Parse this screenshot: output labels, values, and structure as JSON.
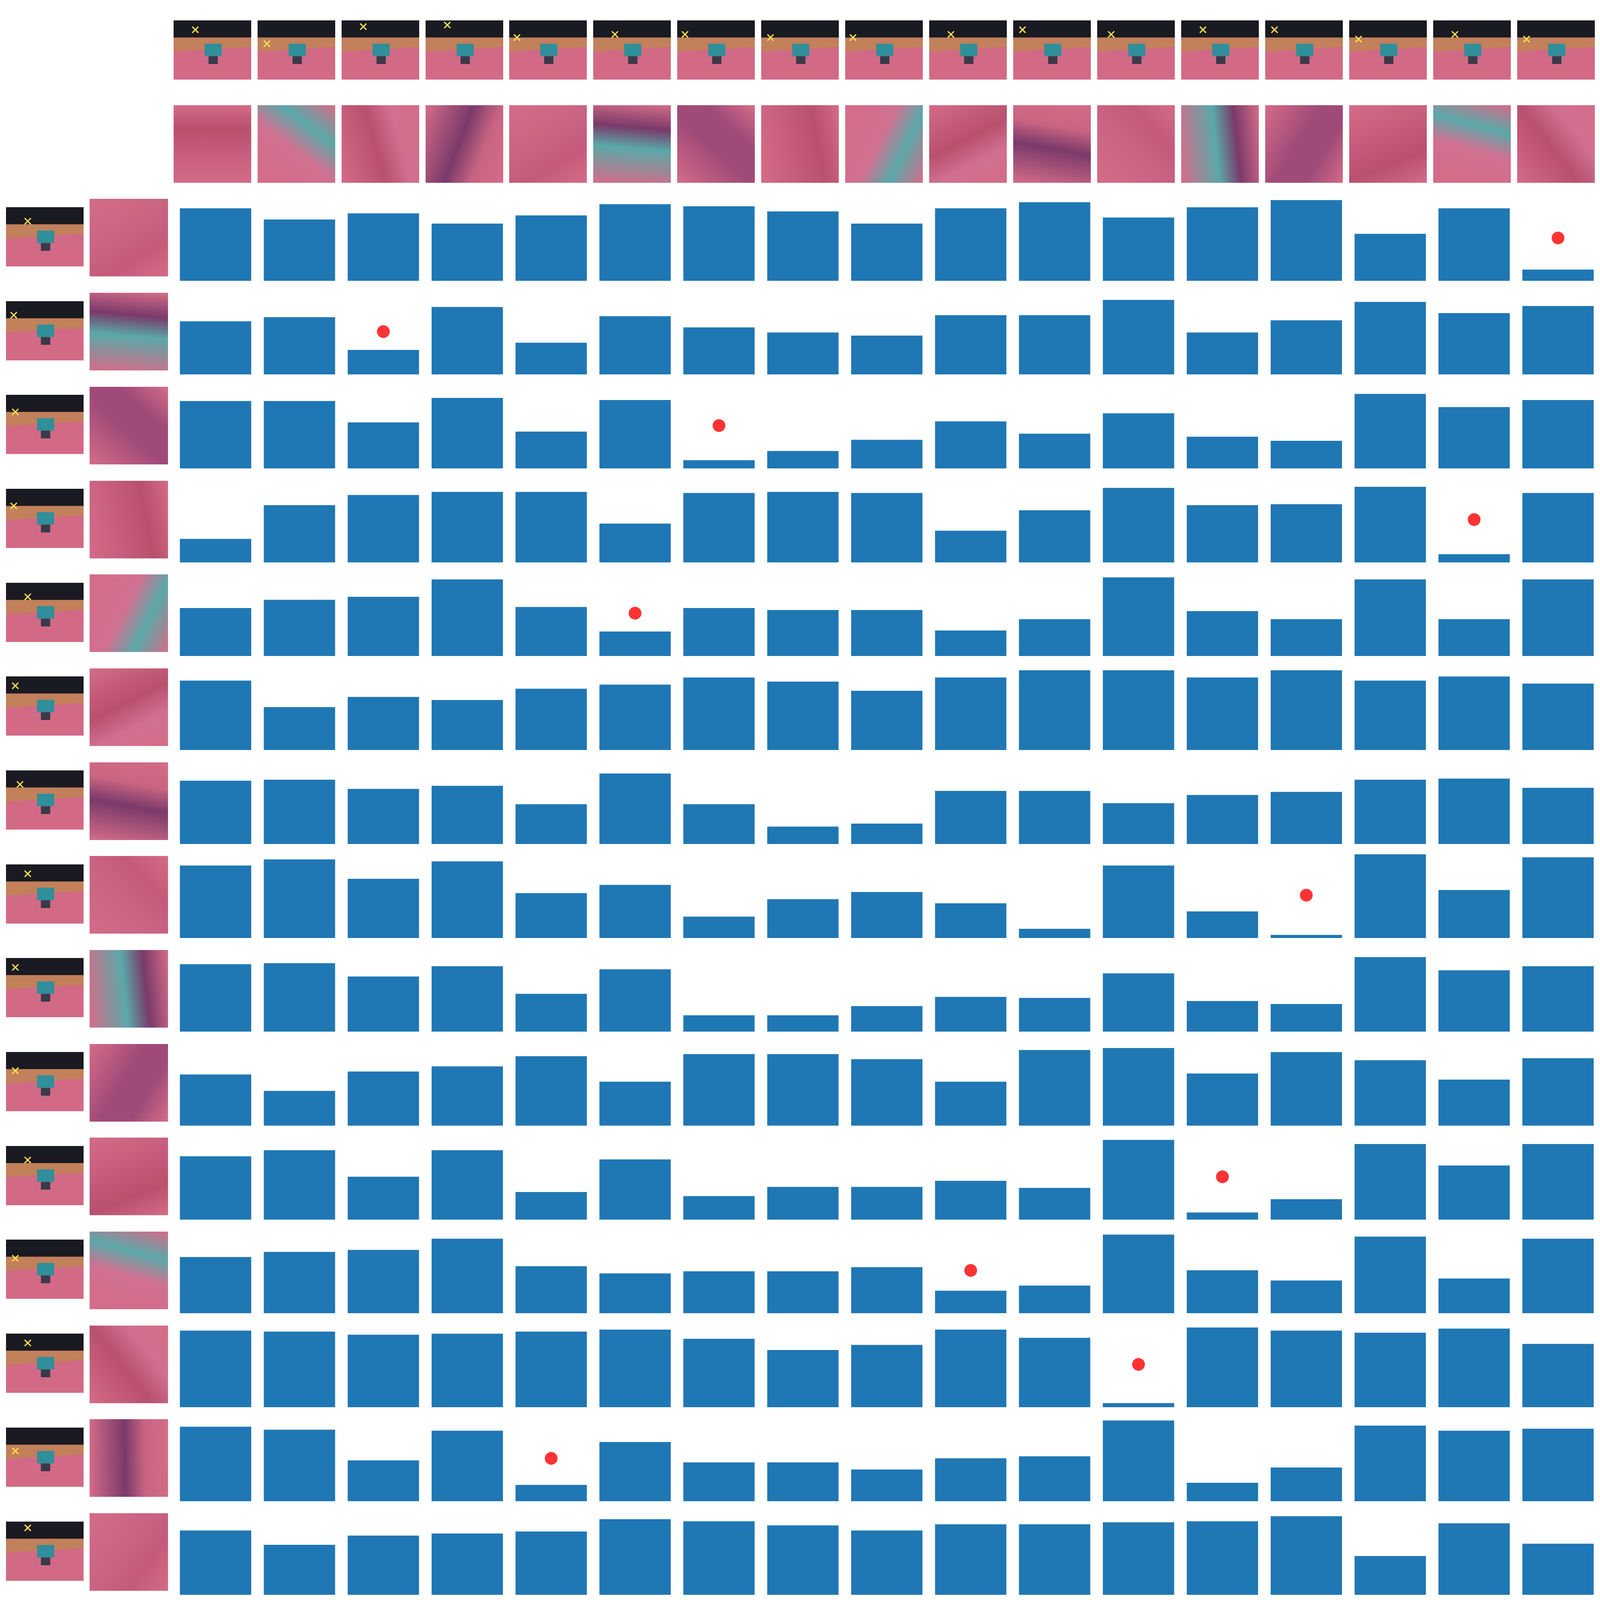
{
  "chart_data": {
    "type": "bar_matrix",
    "color": "#1f77b4",
    "marker": "circle",
    "marker_color": "#ff0000",
    "tick_labels": false,
    "grid": false,
    "ylim": [
      0,
      85
    ],
    "rows": [
      {
        "values": [
          71,
          60,
          66,
          56,
          64,
          75,
          73,
          68,
          56,
          71,
          77,
          62,
          72,
          79,
          46,
          71,
          11
        ],
        "highlight_column": 17
      },
      {
        "values": [
          52,
          56,
          24,
          66,
          31,
          57,
          46,
          41,
          38,
          58,
          58,
          73,
          41,
          53,
          71,
          60,
          67
        ],
        "highlight_column": 3
      },
      {
        "values": [
          66,
          66,
          45,
          69,
          36,
          67,
          8,
          17,
          28,
          46,
          34,
          54,
          31,
          27,
          73,
          60,
          67
        ],
        "highlight_column": 7
      },
      {
        "values": [
          23,
          56,
          66,
          69,
          69,
          38,
          68,
          69,
          68,
          31,
          51,
          73,
          56,
          57,
          74,
          8,
          68
        ],
        "highlight_column": 16
      },
      {
        "values": [
          47,
          55,
          58,
          75,
          48,
          24,
          47,
          45,
          45,
          25,
          36,
          77,
          44,
          36,
          75,
          36,
          75
        ],
        "highlight_column": 6
      },
      {
        "values": [
          68,
          42,
          52,
          49,
          60,
          64,
          71,
          67,
          58,
          71,
          78,
          78,
          71,
          78,
          68,
          72,
          65
        ],
        "highlight_column": null
      },
      {
        "values": [
          62,
          63,
          54,
          57,
          39,
          69,
          39,
          17,
          20,
          52,
          52,
          40,
          48,
          51,
          63,
          64,
          55
        ],
        "highlight_column": null
      },
      {
        "values": [
          71,
          77,
          58,
          75,
          44,
          52,
          21,
          38,
          45,
          34,
          9,
          71,
          26,
          3,
          82,
          47,
          79
        ],
        "highlight_column": 14
      },
      {
        "values": [
          66,
          67,
          54,
          64,
          37,
          61,
          16,
          16,
          25,
          34,
          33,
          57,
          30,
          27,
          73,
          60,
          64
        ],
        "highlight_column": null
      },
      {
        "values": [
          50,
          34,
          53,
          58,
          68,
          43,
          70,
          70,
          65,
          43,
          74,
          76,
          51,
          72,
          64,
          45,
          66
        ],
        "highlight_column": null
      },
      {
        "values": [
          62,
          68,
          42,
          68,
          27,
          59,
          23,
          32,
          32,
          38,
          31,
          78,
          7,
          20,
          74,
          53,
          74
        ],
        "highlight_column": 13
      },
      {
        "values": [
          55,
          60,
          62,
          73,
          46,
          39,
          41,
          41,
          45,
          22,
          27,
          77,
          42,
          32,
          75,
          34,
          73
        ],
        "highlight_column": 10
      },
      {
        "values": [
          75,
          74,
          71,
          72,
          74,
          76,
          67,
          56,
          61,
          76,
          68,
          4,
          78,
          75,
          73,
          77,
          62
        ],
        "highlight_column": 12
      },
      {
        "values": [
          73,
          70,
          40,
          69,
          16,
          58,
          38,
          38,
          31,
          42,
          44,
          79,
          18,
          33,
          74,
          69,
          71
        ],
        "highlight_column": 5
      },
      {
        "values": [
          63,
          49,
          58,
          60,
          62,
          74,
          72,
          68,
          63,
          69,
          69,
          71,
          72,
          77,
          38,
          70,
          50
        ],
        "highlight_column": null
      }
    ]
  }
}
